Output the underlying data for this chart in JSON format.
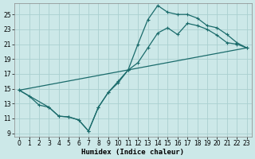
{
  "xlabel": "Humidex (Indice chaleur)",
  "bg_color": "#cce8e8",
  "grid_color": "#aad0d0",
  "line_color": "#1a6b6b",
  "xlim": [
    -0.5,
    23.5
  ],
  "ylim": [
    8.5,
    26.5
  ],
  "xticks": [
    0,
    1,
    2,
    3,
    4,
    5,
    6,
    7,
    8,
    9,
    10,
    11,
    12,
    13,
    14,
    15,
    16,
    17,
    18,
    19,
    20,
    21,
    22,
    23
  ],
  "yticks": [
    9,
    11,
    13,
    15,
    17,
    19,
    21,
    23,
    25
  ],
  "curve1_x": [
    0,
    1,
    2,
    3,
    4,
    5,
    6,
    7,
    8,
    9,
    10,
    11,
    12,
    13,
    14,
    15,
    16,
    17,
    18,
    19,
    20,
    21,
    22,
    23
  ],
  "curve1_y": [
    14.8,
    14.0,
    12.8,
    12.5,
    11.3,
    11.2,
    10.8,
    9.3,
    12.5,
    14.5,
    16.0,
    17.5,
    21.0,
    24.3,
    26.2,
    25.3,
    25.0,
    25.0,
    24.5,
    23.5,
    23.2,
    22.3,
    21.2,
    20.5
  ],
  "curve2_x": [
    0,
    3,
    4,
    5,
    6,
    7,
    8,
    9,
    10,
    11,
    12,
    13,
    14,
    15,
    16,
    17,
    18,
    19,
    20,
    21,
    22,
    23
  ],
  "curve2_y": [
    14.8,
    12.5,
    11.3,
    11.2,
    10.8,
    9.3,
    12.5,
    14.5,
    15.8,
    17.5,
    18.5,
    20.5,
    22.5,
    23.2,
    22.3,
    23.8,
    23.5,
    23.0,
    22.2,
    21.2,
    21.0,
    20.5
  ],
  "line3_x": [
    0,
    23
  ],
  "line3_y": [
    14.8,
    20.5
  ]
}
